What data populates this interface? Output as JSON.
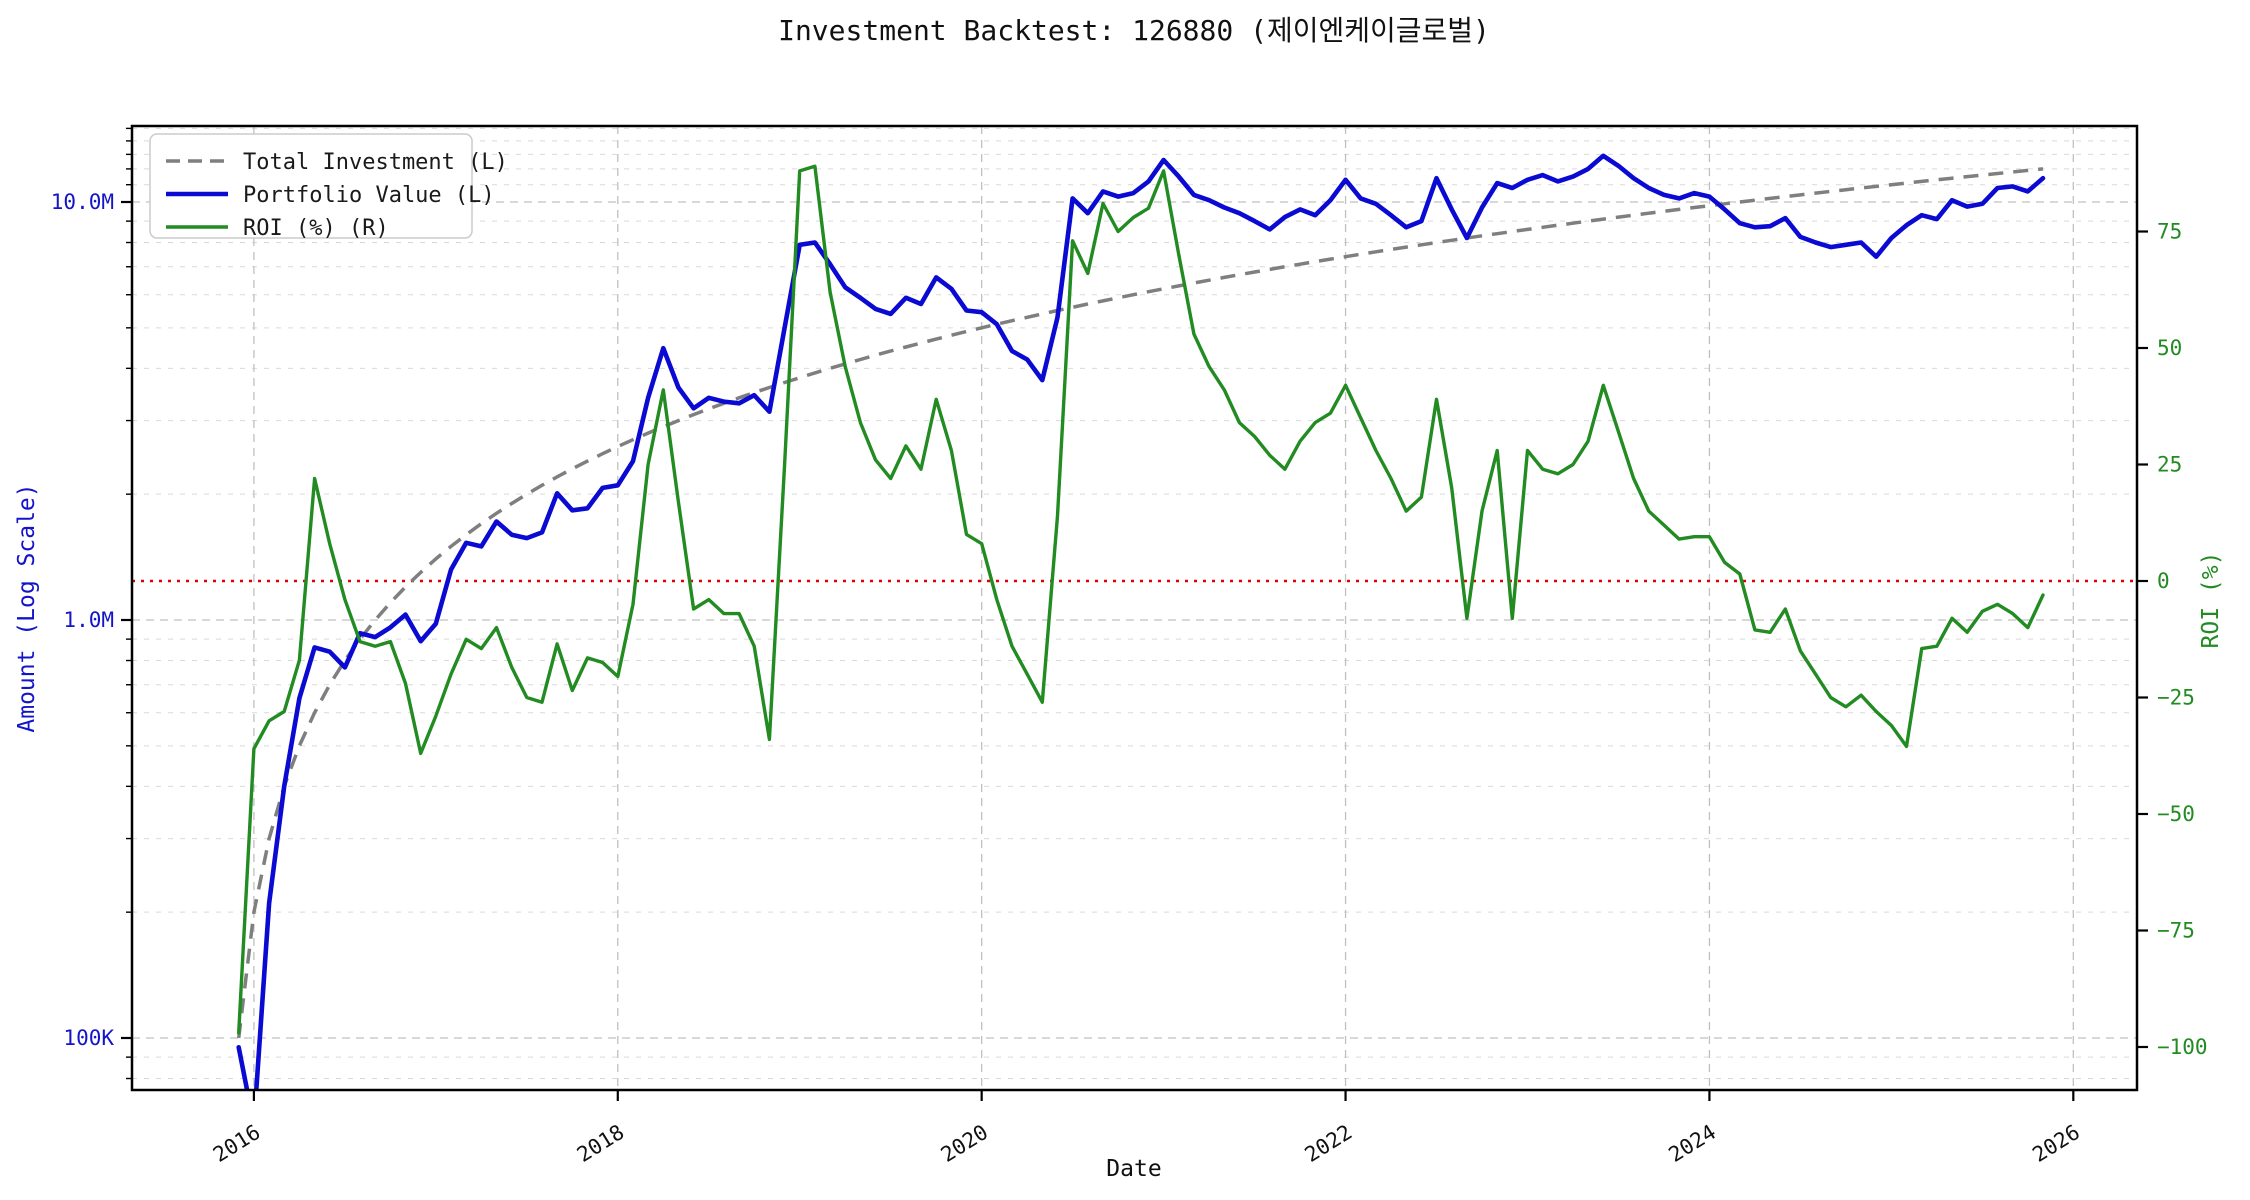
{
  "title": "Investment Backtest: 126880 (제이엔케이글로벌)",
  "colors": {
    "background": "#ffffff",
    "frame": "#000000",
    "grid_major": "#c0c0c0",
    "grid_minor": "#d9d9d9",
    "zero_line": "#e00000",
    "total_investment": "#7f7f7f",
    "portfolio_value": "#0a0ad2",
    "roi": "#228b22",
    "axis_left_text": "#1414c8",
    "axis_right_text": "#228b22",
    "legend_border": "#cccccc"
  },
  "chart_data": {
    "type": "line",
    "title": "Investment Backtest: 126880 (제이엔케이글로벌)",
    "xlabel": "Date",
    "ylabel_left": "Amount (Log Scale)",
    "ylabel_right": "ROI (%)",
    "legend_position": "top-left",
    "grid": true,
    "x_axis": {
      "range": [
        2015.33,
        2026.35
      ],
      "ticks": [
        {
          "v": 2016,
          "label": "2016"
        },
        {
          "v": 2018,
          "label": "2018"
        },
        {
          "v": 2020,
          "label": "2020"
        },
        {
          "v": 2022,
          "label": "2022"
        },
        {
          "v": 2024,
          "label": "2024"
        },
        {
          "v": 2026,
          "label": "2026"
        }
      ]
    },
    "y_left_axis": {
      "scale": "log",
      "unit": "millions",
      "range_millions": [
        0.075,
        15.2
      ],
      "ticks": [
        {
          "v": 0.1,
          "label": "100K"
        },
        {
          "v": 1.0,
          "label": "1.0M"
        },
        {
          "v": 10.0,
          "label": "10.0M"
        }
      ]
    },
    "y_right_axis": {
      "scale": "linear",
      "unit": "percent",
      "range": [
        -109,
        97.6
      ],
      "zero_reference_line": 0,
      "ticks": [
        {
          "v": -100,
          "label": "−100"
        },
        {
          "v": -75,
          "label": "−75"
        },
        {
          "v": -50,
          "label": "−50"
        },
        {
          "v": -25,
          "label": "−25"
        },
        {
          "v": 0,
          "label": "0"
        },
        {
          "v": 25,
          "label": "25"
        },
        {
          "v": 50,
          "label": "50"
        },
        {
          "v": 75,
          "label": "75"
        }
      ]
    },
    "x_monthly_start": 2015.9167,
    "x_monthly_step": 0.0833333,
    "series": [
      {
        "name": "Total Investment (L)",
        "axis": "left",
        "style": "dashed",
        "color": "#7f7f7f",
        "values_millions": [
          0.1,
          0.2,
          0.3,
          0.4,
          0.5,
          0.6,
          0.7,
          0.8,
          0.9,
          1.0,
          1.1,
          1.2,
          1.3,
          1.4,
          1.5,
          1.6,
          1.7,
          1.8,
          1.9,
          2.0,
          2.1,
          2.2,
          2.3,
          2.4,
          2.5,
          2.6,
          2.7,
          2.8,
          2.9,
          3.0,
          3.1,
          3.2,
          3.3,
          3.4,
          3.5,
          3.6,
          3.7,
          3.8,
          3.9,
          4.0,
          4.1,
          4.2,
          4.3,
          4.4,
          4.5,
          4.6,
          4.7,
          4.8,
          4.9,
          5.0,
          5.1,
          5.2,
          5.3,
          5.4,
          5.5,
          5.6,
          5.7,
          5.8,
          5.9,
          6.0,
          6.1,
          6.2,
          6.3,
          6.4,
          6.5,
          6.6,
          6.7,
          6.8,
          6.9,
          7.0,
          7.1,
          7.2,
          7.3,
          7.4,
          7.5,
          7.6,
          7.7,
          7.8,
          7.9,
          8.0,
          8.1,
          8.2,
          8.3,
          8.4,
          8.5,
          8.6,
          8.7,
          8.8,
          8.9,
          9.0,
          9.1,
          9.2,
          9.3,
          9.4,
          9.5,
          9.6,
          9.7,
          9.8,
          9.9,
          10.0,
          10.1,
          10.2,
          10.3,
          10.4,
          10.5,
          10.6,
          10.7,
          10.8,
          10.9,
          11.0,
          11.1,
          11.2,
          11.3,
          11.4,
          11.5,
          11.6,
          11.7,
          11.8,
          11.9,
          12.0
        ]
      },
      {
        "name": "Portfolio Value (L)",
        "axis": "left",
        "style": "solid",
        "color": "#0a0ad2",
        "values_millions": [
          0.095,
          0.062,
          0.21,
          0.4,
          0.65,
          0.86,
          0.84,
          0.77,
          0.93,
          0.91,
          0.96,
          1.03,
          0.89,
          0.98,
          1.32,
          1.53,
          1.5,
          1.72,
          1.6,
          1.57,
          1.62,
          2.01,
          1.83,
          1.85,
          2.07,
          2.1,
          2.4,
          3.4,
          4.47,
          3.6,
          3.21,
          3.4,
          3.33,
          3.3,
          3.45,
          3.15,
          5.0,
          7.9,
          8.0,
          7.1,
          6.25,
          5.9,
          5.55,
          5.4,
          5.9,
          5.7,
          6.6,
          6.2,
          5.5,
          5.45,
          5.1,
          4.4,
          4.2,
          3.75,
          5.3,
          10.2,
          9.4,
          10.6,
          10.3,
          10.5,
          11.2,
          12.6,
          11.5,
          10.4,
          10.1,
          9.7,
          9.4,
          9.0,
          8.6,
          9.2,
          9.6,
          9.3,
          10.1,
          11.3,
          10.2,
          9.9,
          9.3,
          8.7,
          9.0,
          11.4,
          9.6,
          8.2,
          9.7,
          11.1,
          10.8,
          11.3,
          11.6,
          11.2,
          11.5,
          12.0,
          12.9,
          12.2,
          11.4,
          10.8,
          10.4,
          10.2,
          10.5,
          10.3,
          9.6,
          8.9,
          8.7,
          8.75,
          9.15,
          8.25,
          8.0,
          7.8,
          7.9,
          8.0,
          7.4,
          8.2,
          8.8,
          9.3,
          9.1,
          10.1,
          9.75,
          9.9,
          10.8,
          10.9,
          10.6,
          11.4
        ]
      },
      {
        "name": "ROI (%) (R)",
        "axis": "right",
        "style": "solid",
        "color": "#228b22",
        "values_percent": [
          -97,
          -36,
          -30,
          -28,
          -17,
          22,
          8,
          -4,
          -13,
          -14,
          -13,
          -22,
          -37,
          -29,
          -20,
          -12.5,
          -14.5,
          -10,
          -18.5,
          -25,
          -26,
          -13.5,
          -23.5,
          -16.5,
          -17.5,
          -20.5,
          -5,
          25,
          41,
          17,
          -6,
          -4,
          -7,
          -7,
          -14,
          -34,
          25,
          88,
          89,
          62,
          46,
          34,
          26,
          22,
          29,
          24,
          39,
          28,
          10,
          8,
          -4,
          -14,
          -20,
          -26,
          14,
          73,
          66,
          81,
          75,
          78,
          80,
          88,
          70,
          53,
          46,
          41,
          34,
          31,
          27,
          24,
          30,
          34,
          36,
          42,
          35,
          28,
          22,
          15,
          18,
          39,
          20,
          -8,
          15,
          28,
          -8,
          28,
          24,
          23,
          25,
          30,
          42,
          32,
          22,
          15,
          12,
          9,
          9.5,
          9.5,
          4,
          1.5,
          -10.5,
          -11,
          -6,
          -15,
          -20,
          -25,
          -27,
          -24.5,
          -28,
          -31,
          -35.5,
          -14.5,
          -14,
          -8,
          -11,
          -6.5,
          -5,
          -7,
          -10,
          -3
        ]
      }
    ]
  }
}
